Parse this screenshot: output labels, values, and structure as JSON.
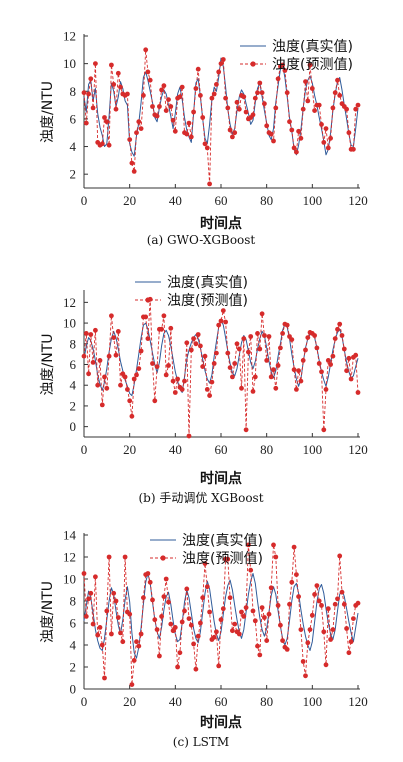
{
  "chart_data": [
    {
      "type": "line",
      "caption": "(a) GWO-XGBoost",
      "xlabel": "时间点",
      "ylabel": "浊度/NTU",
      "xlim": [
        0,
        120
      ],
      "ylim": [
        1,
        12
      ],
      "xticks": [
        0,
        20,
        40,
        60,
        80,
        100,
        120
      ],
      "yticks": [
        2,
        4,
        6,
        8,
        10,
        12
      ],
      "legend_position": "top-right",
      "series": [
        {
          "name": "浊度(真实值)",
          "color": "#2f5b9a",
          "marker": "none",
          "values": [
            7.6,
            6.5,
            8.5,
            8.8,
            7.3,
            8.2,
            6.4,
            5.4,
            4.8,
            4.0,
            4.2,
            6.2,
            8.6,
            8.0,
            6.9,
            7.6,
            8.7,
            8.2,
            7.3,
            7.0,
            4.2,
            3.6,
            3.3,
            4.8,
            5.7,
            7.2,
            9.0,
            9.4,
            8.8,
            8.0,
            7.2,
            6.1,
            5.8,
            6.8,
            7.6,
            8.1,
            7.8,
            7.0,
            6.2,
            5.3,
            6.4,
            7.8,
            8.3,
            7.4,
            6.1,
            5.2,
            4.7,
            4.3,
            6.4,
            8.6,
            8.9,
            7.6,
            6.0,
            4.6,
            4.2,
            5.6,
            7.4,
            8.3,
            8.0,
            9.0,
            10.4,
            9.8,
            8.3,
            6.7,
            5.6,
            4.9,
            5.3,
            6.6,
            7.6,
            8.1,
            7.8,
            7.1,
            6.4,
            5.6,
            5.9,
            7.2,
            8.2,
            8.6,
            7.6,
            6.6,
            5.7,
            4.8,
            4.5,
            5.3,
            7.2,
            8.4,
            9.6,
            9.9,
            9.0,
            7.6,
            6.1,
            5.1,
            3.8,
            3.4,
            4.1,
            5.2,
            6.8,
            8.1,
            8.8,
            9.1,
            8.6,
            7.7,
            7.0,
            6.1,
            5.3,
            4.4,
            3.4,
            3.8,
            5.0,
            6.6,
            7.8,
            8.7,
            9.0,
            8.1,
            7.0,
            6.0,
            4.9,
            4.1,
            4.0,
            5.3,
            6.8
          ]
        },
        {
          "name": "浊度(预测值)",
          "color": "#d62b2b",
          "marker": "circle",
          "values": [
            7.9,
            5.7,
            7.8,
            8.9,
            6.8,
            10.0,
            4.3,
            4.1,
            4.2,
            6.1,
            5.8,
            4.1,
            9.9,
            8.5,
            6.7,
            9.3,
            8.3,
            7.8,
            7.7,
            7.8,
            4.5,
            2.8,
            2.2,
            5.0,
            5.8,
            5.3,
            7.7,
            11.0,
            9.4,
            8.8,
            6.9,
            6.3,
            6.2,
            6.9,
            8.1,
            8.4,
            6.6,
            7.4,
            6.9,
            5.9,
            5.1,
            7.5,
            7.6,
            8.3,
            5.0,
            4.9,
            5.7,
            4.7,
            6.5,
            8.2,
            9.6,
            7.7,
            6.1,
            4.2,
            3.9,
            1.3,
            7.5,
            7.8,
            8.5,
            9.4,
            10.0,
            10.3,
            7.5,
            6.8,
            5.2,
            4.7,
            5.0,
            7.2,
            6.7,
            7.7,
            7.6,
            6.5,
            6.0,
            6.1,
            6.3,
            7.5,
            7.9,
            8.6,
            7.9,
            7.1,
            5.5,
            5.0,
            4.9,
            4.4,
            6.8,
            8.9,
            9.8,
            9.9,
            9.5,
            7.9,
            5.8,
            5.2,
            3.9,
            3.6,
            5.1,
            4.6,
            6.7,
            8.7,
            7.3,
            9.9,
            8.2,
            6.6,
            7.0,
            7.0,
            5.6,
            4.3,
            5.3,
            3.9,
            4.6,
            6.8,
            7.9,
            8.8,
            7.7,
            7.1,
            6.9,
            6.7,
            5.0,
            3.8,
            3.8,
            6.7,
            7.0
          ]
        }
      ]
    },
    {
      "type": "line",
      "caption": "(b) 手动调优 XGBoost",
      "xlabel": "时间点",
      "ylabel": "浊度/NTU",
      "xlim": [
        0,
        120
      ],
      "ylim": [
        -1,
        13
      ],
      "xticks": [
        0,
        20,
        40,
        60,
        80,
        100,
        120
      ],
      "yticks": [
        0,
        2,
        4,
        6,
        8,
        10,
        12
      ],
      "legend_position": "top-right",
      "series": [
        {
          "name": "浊度(真实值)",
          "color": "#2f5b9a",
          "marker": "none",
          "values": [
            6.5,
            7.8,
            8.6,
            8.3,
            7.5,
            6.4,
            5.0,
            4.1,
            3.5,
            4.3,
            5.6,
            7.2,
            8.5,
            9.2,
            8.6,
            7.5,
            6.3,
            5.4,
            4.5,
            3.9,
            3.2,
            3.0,
            4.1,
            5.5,
            7.0,
            8.6,
            9.8,
            10.0,
            9.4,
            8.3,
            7.1,
            6.0,
            5.2,
            6.2,
            7.8,
            9.0,
            9.3,
            8.8,
            7.8,
            6.5,
            5.3,
            4.4,
            3.6,
            3.3,
            4.8,
            6.5,
            7.4,
            8.1,
            8.6,
            8.9,
            8.5,
            7.6,
            6.5,
            5.4,
            4.6,
            4.2,
            5.0,
            6.8,
            8.2,
            9.6,
            10.3,
            9.8,
            8.6,
            7.3,
            6.1,
            5.2,
            4.9,
            5.6,
            6.9,
            8.1,
            8.8,
            8.4,
            7.3,
            6.2,
            5.6,
            6.3,
            7.5,
            8.5,
            9.2,
            8.8,
            7.6,
            6.3,
            5.3,
            4.7,
            5.4,
            6.8,
            8.0,
            9.3,
            9.9,
            9.6,
            8.5,
            7.0,
            5.7,
            4.6,
            3.9,
            4.6,
            6.2,
            7.6,
            8.5,
            8.9,
            9.1,
            8.6,
            7.6,
            6.4,
            5.3,
            4.5,
            3.9,
            4.8,
            6.1,
            7.4,
            8.4,
            9.1,
            9.4,
            8.7,
            7.4,
            6.2,
            5.3,
            4.7,
            4.9,
            5.8,
            6.6
          ]
        },
        {
          "name": "浊度(预测值)",
          "color": "#d62b2b",
          "marker": "circle",
          "values": [
            6.8,
            9.0,
            5.1,
            8.9,
            6.2,
            9.3,
            4.0,
            6.4,
            2.1,
            4.8,
            3.7,
            6.8,
            10.7,
            8.6,
            6.9,
            9.2,
            4.0,
            5.1,
            4.8,
            3.6,
            2.5,
            1.0,
            4.6,
            5.0,
            5.6,
            7.3,
            10.6,
            10.6,
            8.5,
            12.3,
            6.1,
            2.5,
            5.8,
            9.4,
            9.4,
            10.7,
            5.0,
            5.9,
            9.5,
            4.4,
            3.3,
            4.6,
            3.8,
            3.6,
            4.4,
            8.1,
            -0.9,
            7.4,
            8.5,
            8.0,
            8.9,
            7.8,
            5.8,
            6.8,
            3.6,
            3.0,
            4.3,
            6.1,
            7.1,
            9.8,
            10.2,
            11.2,
            10.1,
            7.1,
            5.7,
            4.8,
            6.1,
            8.0,
            7.5,
            3.7,
            8.5,
            -0.3,
            7.2,
            8.7,
            3.4,
            4.8,
            9.0,
            7.5,
            10.9,
            8.8,
            6.4,
            8.7,
            4.8,
            5.5,
            3.7,
            5.9,
            7.6,
            9.0,
            9.9,
            9.8,
            8.7,
            8.4,
            5.5,
            3.6,
            5.4,
            4.4,
            6.4,
            7.4,
            8.6,
            9.1,
            9.0,
            8.8,
            7.6,
            6.1,
            5.3,
            -0.3,
            3.6,
            6.4,
            6.0,
            6.8,
            8.5,
            9.4,
            9.9,
            8.8,
            7.5,
            5.4,
            6.6,
            4.6,
            6.7,
            6.9,
            3.3
          ]
        }
      ]
    },
    {
      "type": "line",
      "caption": "(c) LSTM",
      "xlabel": "时间点",
      "ylabel": "浊度/NTU",
      "xlim": [
        0,
        120
      ],
      "ylim": [
        0,
        14
      ],
      "xticks": [
        0,
        20,
        40,
        60,
        80,
        100,
        120
      ],
      "yticks": [
        0,
        2,
        4,
        6,
        8,
        10,
        12,
        14
      ],
      "legend_position": "top-right",
      "series": [
        {
          "name": "浊度(真实值)",
          "color": "#2f5b9a",
          "marker": "none",
          "values": [
            6.2,
            7.6,
            8.9,
            8.3,
            6.9,
            5.4,
            4.4,
            3.7,
            3.5,
            4.6,
            6.3,
            8.0,
            9.2,
            8.6,
            7.1,
            5.8,
            5.0,
            6.3,
            8.1,
            9.3,
            7.9,
            5.1,
            3.3,
            2.8,
            3.8,
            5.6,
            7.7,
            9.7,
            10.5,
            9.6,
            7.9,
            6.3,
            5.2,
            4.6,
            5.6,
            7.2,
            8.4,
            8.8,
            7.7,
            6.2,
            5.0,
            4.3,
            4.5,
            6.0,
            7.9,
            9.0,
            8.3,
            6.9,
            5.5,
            4.6,
            4.2,
            5.2,
            7.0,
            8.7,
            9.8,
            9.1,
            7.6,
            6.1,
            5.0,
            4.4,
            5.2,
            6.8,
            8.4,
            9.4,
            9.9,
            9.0,
            7.6,
            6.3,
            5.2,
            4.6,
            5.4,
            7.0,
            8.6,
            9.8,
            10.5,
            9.6,
            8.0,
            6.5,
            5.4,
            4.8,
            5.5,
            7.0,
            8.5,
            9.3,
            8.6,
            7.1,
            5.7,
            4.6,
            4.0,
            4.6,
            6.2,
            8.0,
            9.3,
            9.6,
            8.7,
            7.2,
            5.9,
            4.8,
            4.0,
            3.5,
            4.3,
            6.1,
            7.9,
            9.1,
            9.5,
            8.7,
            7.3,
            6.0,
            5.0,
            4.5,
            5.4,
            7.1,
            8.6,
            9.0,
            8.4,
            7.3,
            6.1,
            5.1,
            4.3,
            5.6,
            6.9
          ]
        },
        {
          "name": "浊度(预测值)",
          "color": "#d62b2b",
          "marker": "circle",
          "values": [
            10.5,
            6.6,
            8.2,
            8.7,
            5.9,
            10.2,
            4.9,
            5.6,
            4.0,
            1.0,
            7.1,
            12.0,
            5.0,
            8.7,
            8.0,
            6.5,
            5.1,
            4.3,
            12.0,
            7.0,
            6.8,
            0.4,
            2.6,
            4.3,
            3.9,
            5.0,
            8.3,
            10.4,
            10.5,
            9.7,
            8.1,
            6.3,
            5.4,
            3.0,
            6.6,
            8.4,
            10.0,
            7.9,
            5.9,
            5.3,
            5.6,
            2.0,
            3.3,
            6.1,
            7.1,
            9.1,
            6.4,
            5.8,
            4.1,
            1.8,
            4.8,
            6.0,
            8.3,
            11.4,
            9.3,
            7.0,
            4.5,
            4.7,
            5.2,
            2.1,
            6.3,
            7.3,
            11.8,
            11.8,
            8.3,
            5.3,
            5.9,
            5.2,
            5.0,
            7.0,
            6.6,
            7.4,
            13.1,
            10.8,
            7.1,
            6.2,
            3.9,
            3.1,
            7.4,
            6.5,
            4.4,
            6.8,
            9.2,
            13.1,
            12.0,
            7.6,
            5.8,
            4.4,
            3.8,
            3.6,
            7.7,
            9.7,
            12.9,
            10.4,
            8.4,
            5.4,
            2.5,
            1.2,
            4.2,
            5.4,
            6.7,
            8.6,
            9.4,
            8.0,
            7.6,
            5.2,
            2.2,
            7.3,
            4.5,
            5.4,
            7.7,
            8.2,
            12.1,
            8.8,
            7.7,
            5.5,
            3.3,
            4.3,
            6.4,
            7.6,
            7.8
          ]
        }
      ]
    }
  ]
}
